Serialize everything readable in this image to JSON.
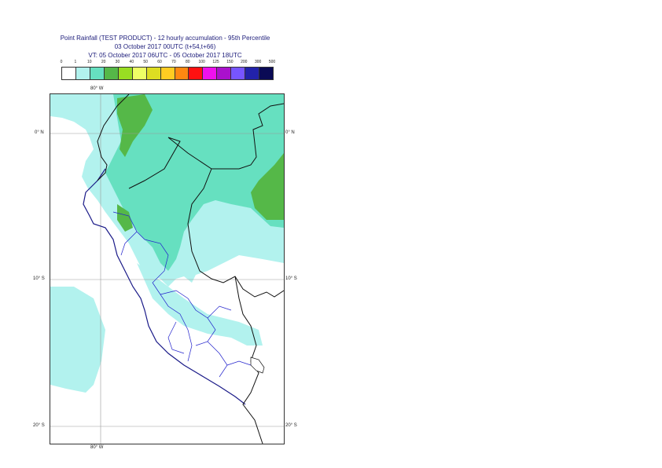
{
  "title": {
    "line1": "Point Rainfall (TEST PRODUCT) - 12 hourly accumulation - 95th Percentile",
    "line2": "03 October 2017 00UTC (t+54,t+66)",
    "line3": "VT: 05 October 2017 06UTC - 05 October 2017 18UTC"
  },
  "legend": {
    "labels": [
      "0",
      "1",
      "10",
      "20",
      "30",
      "40",
      "50",
      "60",
      "70",
      "80",
      "100",
      "125",
      "150",
      "200",
      "300",
      "500"
    ],
    "colors": [
      "#ffffff",
      "#b2f2ee",
      "#66e0c0",
      "#55b848",
      "#99dd22",
      "#eeff66",
      "#dddd22",
      "#ffcc22",
      "#ff8811",
      "#ff1111",
      "#ee11ee",
      "#aa11cc",
      "#7755ff",
      "#2222aa",
      "#0a0a55"
    ]
  },
  "axes": {
    "top_lon": "80° W",
    "bottom_lon": "80° W",
    "lat_left": [
      "0° N",
      "10° S",
      "20° S"
    ],
    "lat_right": [
      "0° N",
      "10° S",
      "20° S"
    ]
  }
}
